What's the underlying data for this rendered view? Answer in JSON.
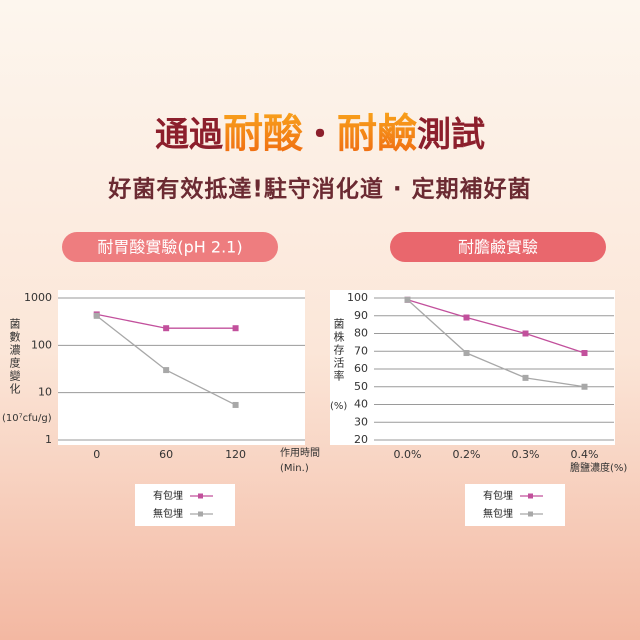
{
  "header": {
    "title_parts": [
      "通過",
      "耐酸",
      "・",
      "耐鹼",
      "測試"
    ],
    "subtitle": "好菌有效抵達!駐守消化道 · 定期補好菌"
  },
  "chart_data": [
    {
      "type": "line",
      "title": "耐胃酸實驗(pH 2.1)",
      "y_label": "菌數濃度變化",
      "y_unit": "(10⁷cfu/g)",
      "x_label": [
        "作用時間",
        "(Min.)"
      ],
      "x": [
        0,
        60,
        120
      ],
      "xlim": [
        -30,
        180
      ],
      "xticks": [
        0,
        60,
        120
      ],
      "y_scale": "log",
      "ylim": [
        1,
        1000
      ],
      "yticks": [
        1,
        10,
        100,
        1000
      ],
      "grid": true,
      "series": [
        {
          "name": "有包埋",
          "color": "#c2509c",
          "values": [
            450,
            230,
            230
          ]
        },
        {
          "name": "無包埋",
          "color": "#a8a8a8",
          "values": [
            420,
            30,
            5.5
          ]
        }
      ]
    },
    {
      "type": "line",
      "title": "耐膽鹼實驗",
      "y_label": "菌株存活率",
      "y_unit": "(%)",
      "x_label": [
        "膽鹽濃度(%)"
      ],
      "categories": [
        "0.0%",
        "0.2%",
        "0.3%",
        "0.4%"
      ],
      "y_scale": "linear",
      "ylim": [
        20,
        100
      ],
      "yticks": [
        20,
        30,
        40,
        50,
        60,
        70,
        80,
        90,
        100
      ],
      "grid": true,
      "series": [
        {
          "name": "有包埋",
          "color": "#c2509c",
          "values": [
            99,
            89,
            80,
            69
          ]
        },
        {
          "name": "無包埋",
          "color": "#a8a8a8",
          "values": [
            99,
            69,
            55,
            50
          ]
        }
      ]
    }
  ]
}
